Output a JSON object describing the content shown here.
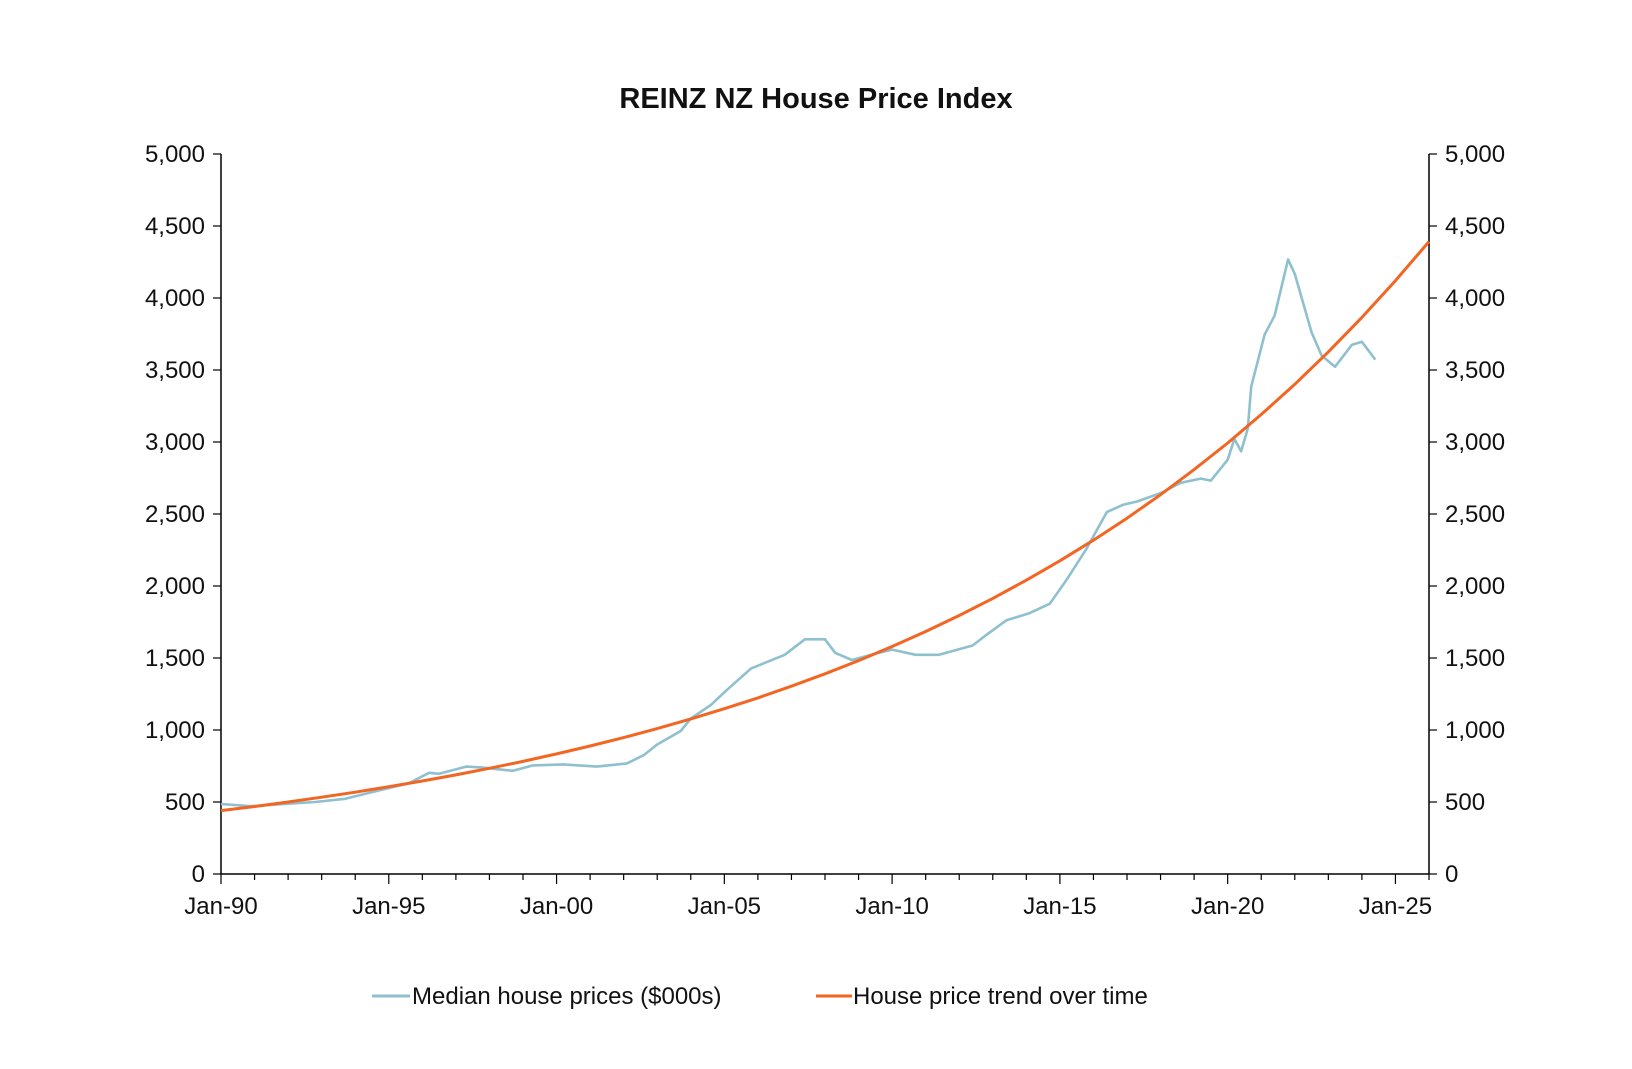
{
  "chart_data": {
    "type": "line",
    "title": "REINZ NZ House Price Index",
    "xlabel": "",
    "ylabel": "",
    "xlim": [
      "1990-01",
      "2026-01"
    ],
    "ylim": [
      0,
      5000
    ],
    "y_ticks": [
      "0",
      "500",
      "1,000",
      "1,500",
      "2,000",
      "2,500",
      "3,000",
      "3,500",
      "4,000",
      "4,500",
      "5,000"
    ],
    "y_tick_values": [
      0,
      500,
      1000,
      1500,
      2000,
      2500,
      3000,
      3500,
      4000,
      4500,
      5000
    ],
    "x_ticks": [
      "Jan-90",
      "Jan-95",
      "Jan-00",
      "Jan-05",
      "Jan-10",
      "Jan-15",
      "Jan-20",
      "Jan-25"
    ],
    "x_tick_years": [
      1990,
      1995,
      2000,
      2005,
      2010,
      2015,
      2020,
      2025
    ],
    "dual_y_axis": true,
    "grid": false,
    "legend_position": "bottom",
    "series": [
      {
        "name": "Median house prices ($000s)",
        "color": "#8fc0cf",
        "points": [
          [
            1990.0,
            486
          ],
          [
            1990.9,
            471
          ],
          [
            1991.9,
            486
          ],
          [
            1992.8,
            500
          ],
          [
            1993.7,
            522
          ],
          [
            1994.7,
            580
          ],
          [
            1995.6,
            630
          ],
          [
            1996.2,
            703
          ],
          [
            1996.5,
            696
          ],
          [
            1997.3,
            746
          ],
          [
            1997.8,
            739
          ],
          [
            1998.7,
            717
          ],
          [
            1999.3,
            754
          ],
          [
            2000.2,
            761
          ],
          [
            2001.2,
            746
          ],
          [
            2002.1,
            768
          ],
          [
            2002.6,
            826
          ],
          [
            2003.0,
            899
          ],
          [
            2003.7,
            993
          ],
          [
            2004.0,
            1080
          ],
          [
            2004.6,
            1174
          ],
          [
            2005.1,
            1283
          ],
          [
            2005.8,
            1428
          ],
          [
            2006.8,
            1522
          ],
          [
            2007.4,
            1630
          ],
          [
            2008.0,
            1630
          ],
          [
            2008.3,
            1536
          ],
          [
            2008.8,
            1486
          ],
          [
            2009.6,
            1536
          ],
          [
            2010.0,
            1558
          ],
          [
            2010.7,
            1522
          ],
          [
            2011.4,
            1522
          ],
          [
            2012.4,
            1587
          ],
          [
            2012.8,
            1659
          ],
          [
            2013.4,
            1761
          ],
          [
            2014.1,
            1812
          ],
          [
            2014.7,
            1877
          ],
          [
            2015.2,
            2043
          ],
          [
            2015.8,
            2261
          ],
          [
            2016.4,
            2514
          ],
          [
            2016.9,
            2565
          ],
          [
            2017.3,
            2587
          ],
          [
            2018.0,
            2645
          ],
          [
            2018.6,
            2717
          ],
          [
            2019.2,
            2746
          ],
          [
            2019.5,
            2732
          ],
          [
            2020.0,
            2877
          ],
          [
            2020.2,
            3022
          ],
          [
            2020.4,
            2935
          ],
          [
            2020.6,
            3094
          ],
          [
            2020.7,
            3384
          ],
          [
            2021.1,
            3746
          ],
          [
            2021.4,
            3877
          ],
          [
            2021.8,
            4268
          ],
          [
            2022.0,
            4167
          ],
          [
            2022.5,
            3761
          ],
          [
            2022.8,
            3601
          ],
          [
            2023.2,
            3522
          ],
          [
            2023.7,
            3674
          ],
          [
            2024.0,
            3696
          ],
          [
            2024.4,
            3572
          ]
        ]
      },
      {
        "name": "House price trend over time",
        "color": "#f26522",
        "points": [
          [
            1990,
            440
          ],
          [
            1991,
            469
          ],
          [
            1992,
            500
          ],
          [
            1993,
            533
          ],
          [
            1994,
            568
          ],
          [
            1995,
            606
          ],
          [
            1996,
            646
          ],
          [
            1997,
            688
          ],
          [
            1998,
            734
          ],
          [
            1999,
            782
          ],
          [
            2000,
            834
          ],
          [
            2001,
            889
          ],
          [
            2002,
            947
          ],
          [
            2003,
            1010
          ],
          [
            2004,
            1077
          ],
          [
            2005,
            1148
          ],
          [
            2006,
            1223
          ],
          [
            2007,
            1304
          ],
          [
            2008,
            1390
          ],
          [
            2009,
            1482
          ],
          [
            2010,
            1580
          ],
          [
            2011,
            1684
          ],
          [
            2012,
            1795
          ],
          [
            2013,
            1914
          ],
          [
            2014,
            2040
          ],
          [
            2015,
            2175
          ],
          [
            2016,
            2318
          ],
          [
            2017,
            2471
          ],
          [
            2018,
            2634
          ],
          [
            2019,
            2808
          ],
          [
            2020,
            2993
          ],
          [
            2021,
            3191
          ],
          [
            2022,
            3401
          ],
          [
            2023,
            3626
          ],
          [
            2024,
            3865
          ],
          [
            2025,
            4120
          ],
          [
            2026,
            4392
          ]
        ]
      }
    ]
  }
}
